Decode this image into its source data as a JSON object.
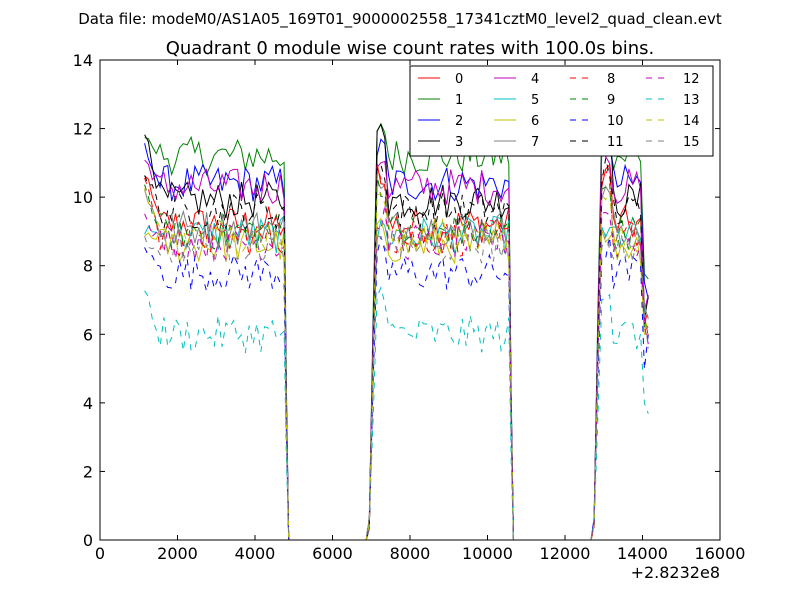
{
  "figure": {
    "suptitle": "Data file: modeM0/AS1A05_169T01_9000002558_17341cztM0_level2_quad_clean.evt"
  },
  "chart_data": {
    "type": "line",
    "title": "Quadrant 0 module wise count rates with 100.0s bins.",
    "xlabel": "",
    "ylabel": "",
    "x_offset_label": "+2.8232e8",
    "xlim": [
      0,
      16000
    ],
    "ylim": [
      0,
      14
    ],
    "xticks": [
      0,
      2000,
      4000,
      6000,
      8000,
      10000,
      12000,
      14000,
      16000
    ],
    "xtick_labels": [
      "0",
      "2000",
      "4000",
      "6000",
      "8000",
      "10000",
      "12000",
      "14000",
      "16000"
    ],
    "yticks": [
      0,
      2,
      4,
      6,
      8,
      10,
      12,
      14
    ],
    "ytick_labels": [
      "0",
      "2",
      "4",
      "6",
      "8",
      "10",
      "12",
      "14"
    ],
    "grid": false,
    "legend": {
      "position": "top-right",
      "ncol": 4
    },
    "segments": [
      {
        "start": 1150,
        "end": 4750,
        "step": 100
      },
      {
        "start": 6950,
        "end": 10550,
        "step": 100
      },
      {
        "start": 12750,
        "end": 14150,
        "step": 100
      }
    ],
    "series": [
      {
        "name": "0",
        "color": "#ff0000",
        "style": "solid",
        "level": 9.2,
        "start": 10.7
      },
      {
        "name": "1",
        "color": "#008000",
        "style": "solid",
        "level": 11.2,
        "start": 11.9
      },
      {
        "name": "2",
        "color": "#0000ff",
        "style": "solid",
        "level": 10.4,
        "start": 11.4
      },
      {
        "name": "3",
        "color": "#000000",
        "style": "solid",
        "level": 9.9,
        "start": 12.0
      },
      {
        "name": "4",
        "color": "#bf00bf",
        "style": "solid",
        "level": 10.3,
        "start": 11.1
      },
      {
        "name": "5",
        "color": "#00bfbf",
        "style": "solid",
        "level": 8.9,
        "start": 9.0
      },
      {
        "name": "6",
        "color": "#bfbf00",
        "style": "solid",
        "level": 8.6,
        "start": 9.0
      },
      {
        "name": "7",
        "color": "#808080",
        "style": "solid",
        "level": 9.1,
        "start": 10.2
      },
      {
        "name": "8",
        "color": "#ff0000",
        "style": "dashed",
        "level": 8.8,
        "start": 10.6
      },
      {
        "name": "9",
        "color": "#008000",
        "style": "dashed",
        "level": 9.0,
        "start": 10.4
      },
      {
        "name": "10",
        "color": "#0000ff",
        "style": "dashed",
        "level": 7.8,
        "start": 8.5
      },
      {
        "name": "11",
        "color": "#000000",
        "style": "dashed",
        "level": 9.6,
        "start": 10.8
      },
      {
        "name": "12",
        "color": "#bf00bf",
        "style": "dashed",
        "level": 8.7,
        "start": 9.4
      },
      {
        "name": "13",
        "color": "#00bfbf",
        "style": "dashed",
        "level": 6.0,
        "start": 7.2
      },
      {
        "name": "14",
        "color": "#bfbf00",
        "style": "dashed",
        "level": 8.9,
        "start": 10.2
      },
      {
        "name": "15",
        "color": "#808080",
        "style": "dashed",
        "level": 8.6,
        "start": 8.7
      }
    ]
  }
}
